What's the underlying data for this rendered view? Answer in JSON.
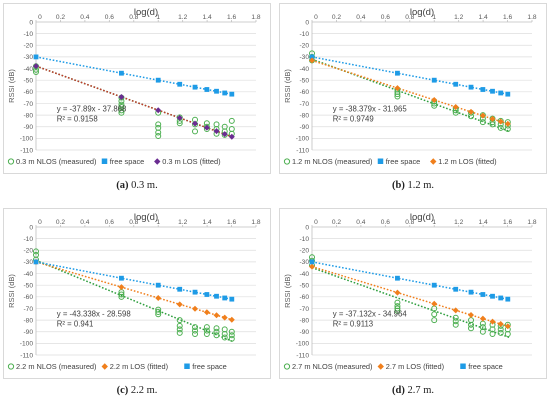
{
  "chart_data": [
    {
      "type": "scatter",
      "panel_label": "(a)",
      "caption": "0.3 m.",
      "title": "log(d)",
      "ylabel": "RSSI (dB)",
      "xlim": [
        0,
        1.8
      ],
      "ylim": [
        -110,
        0
      ],
      "x_ticks": [
        "0",
        "0.2",
        "0.4",
        "0.6",
        "0.8",
        "1",
        "1.2",
        "1.4",
        "1.6",
        "1.8"
      ],
      "y_ticks": [
        "0",
        "-10",
        "-20",
        "-30",
        "-40",
        "-50",
        "-60",
        "-70",
        "-80",
        "-90",
        "-100",
        "-110"
      ],
      "equation": "y = -37.89x - 37.868",
      "r_squared": "R² = 0.9158",
      "series": [
        {
          "name": "0.3 m NLOS (measured)",
          "marker": "circle-open",
          "color": "#4caf50",
          "trend": {
            "slope": -37.89,
            "intercept": -37.868,
            "color": "#2e9e3e"
          },
          "points": [
            [
              0,
              -38
            ],
            [
              0,
              -41
            ],
            [
              0,
              -43
            ],
            [
              0.699,
              -65
            ],
            [
              0.699,
              -68
            ],
            [
              0.699,
              -71
            ],
            [
              0.699,
              -73
            ],
            [
              0.699,
              -76
            ],
            [
              0.699,
              -78
            ],
            [
              1,
              -78
            ],
            [
              1,
              -88
            ],
            [
              1,
              -91
            ],
            [
              1,
              -95
            ],
            [
              1,
              -98
            ],
            [
              1.176,
              -82
            ],
            [
              1.176,
              -85
            ],
            [
              1.176,
              -87
            ],
            [
              1.301,
              -84
            ],
            [
              1.301,
              -88
            ],
            [
              1.301,
              -94
            ],
            [
              1.398,
              -87
            ],
            [
              1.398,
              -90
            ],
            [
              1.398,
              -92
            ],
            [
              1.477,
              -88
            ],
            [
              1.477,
              -92
            ],
            [
              1.477,
              -96
            ],
            [
              1.544,
              -90
            ],
            [
              1.544,
              -94
            ],
            [
              1.544,
              -97
            ],
            [
              1.602,
              -85
            ],
            [
              1.602,
              -92
            ],
            [
              1.602,
              -96
            ]
          ]
        },
        {
          "name": "free space",
          "marker": "square",
          "color": "#1e9be6",
          "trend": {
            "slope": -20,
            "intercept": -30,
            "color": "#1e9be6"
          },
          "points": [
            [
              0,
              -30
            ],
            [
              0.699,
              -44
            ],
            [
              1,
              -50
            ],
            [
              1.176,
              -53.5
            ],
            [
              1.301,
              -56
            ],
            [
              1.398,
              -58
            ],
            [
              1.477,
              -59.5
            ],
            [
              1.544,
              -61
            ],
            [
              1.602,
              -62
            ]
          ]
        },
        {
          "name": "0.3 m LOS (fitted)",
          "marker": "diamond",
          "color": "#6a2c91",
          "trend": {
            "slope": -37.89,
            "intercept": -37.868,
            "color": "#c0392b"
          },
          "points": [
            [
              0,
              -37.9
            ],
            [
              0.699,
              -64.4
            ],
            [
              1,
              -75.8
            ],
            [
              1.176,
              -82.4
            ],
            [
              1.301,
              -87.2
            ],
            [
              1.398,
              -90.8
            ],
            [
              1.477,
              -93.8
            ],
            [
              1.544,
              -96.4
            ],
            [
              1.602,
              -98.6
            ]
          ]
        }
      ]
    },
    {
      "type": "scatter",
      "panel_label": "(b)",
      "caption": "1.2 m.",
      "title": "log(d)",
      "ylabel": "RSSI (dB)",
      "xlim": [
        0,
        1.8
      ],
      "ylim": [
        -110,
        0
      ],
      "x_ticks": [
        "0",
        "0.2",
        "0.4",
        "0.6",
        "0.8",
        "1",
        "1.2",
        "1.4",
        "1.6",
        "1.8"
      ],
      "y_ticks": [
        "0",
        "-10",
        "-20",
        "-30",
        "-40",
        "-50",
        "-60",
        "-70",
        "-80",
        "-90",
        "-100",
        "-110"
      ],
      "equation": "y = -38.379x - 31.965",
      "r_squared": "R² = 0.9749",
      "series": [
        {
          "name": "1.2 m NLOS (measured)",
          "marker": "circle-open",
          "color": "#4caf50",
          "trend": {
            "slope": -38.379,
            "intercept": -31.965,
            "color": "#2e9e3e"
          },
          "points": [
            [
              0,
              -27
            ],
            [
              0,
              -30
            ],
            [
              0,
              -33
            ],
            [
              0.699,
              -58
            ],
            [
              0.699,
              -60
            ],
            [
              0.699,
              -62
            ],
            [
              0.699,
              -64
            ],
            [
              1,
              -68
            ],
            [
              1,
              -70
            ],
            [
              1,
              -72
            ],
            [
              1.176,
              -74
            ],
            [
              1.176,
              -76
            ],
            [
              1.176,
              -78
            ],
            [
              1.301,
              -78
            ],
            [
              1.301,
              -81
            ],
            [
              1.398,
              -80
            ],
            [
              1.398,
              -83
            ],
            [
              1.398,
              -86
            ],
            [
              1.477,
              -83
            ],
            [
              1.477,
              -86
            ],
            [
              1.477,
              -88
            ],
            [
              1.544,
              -85
            ],
            [
              1.544,
              -88
            ],
            [
              1.544,
              -91
            ],
            [
              1.602,
              -86
            ],
            [
              1.602,
              -89
            ],
            [
              1.602,
              -92
            ]
          ]
        },
        {
          "name": "free space",
          "marker": "square",
          "color": "#1e9be6",
          "trend": {
            "slope": -20,
            "intercept": -30,
            "color": "#1e9be6"
          },
          "points": [
            [
              0,
              -30
            ],
            [
              0.699,
              -44
            ],
            [
              1,
              -50
            ],
            [
              1.176,
              -53.5
            ],
            [
              1.301,
              -56
            ],
            [
              1.398,
              -58
            ],
            [
              1.477,
              -59.5
            ],
            [
              1.544,
              -61
            ],
            [
              1.602,
              -62
            ]
          ]
        },
        {
          "name": "1.2 m LOS (fitted)",
          "marker": "diamond",
          "color": "#f07f1c",
          "trend": {
            "slope": -34,
            "intercept": -33,
            "color": "#f07f1c"
          },
          "points": [
            [
              0,
              -33
            ],
            [
              0.699,
              -56.8
            ],
            [
              1,
              -67
            ],
            [
              1.176,
              -73
            ],
            [
              1.301,
              -77.2
            ],
            [
              1.398,
              -80.5
            ],
            [
              1.477,
              -83.2
            ],
            [
              1.544,
              -85.5
            ],
            [
              1.602,
              -87.5
            ]
          ]
        }
      ]
    },
    {
      "type": "scatter",
      "panel_label": "(c)",
      "caption": "2.2 m.",
      "title": "log(d)",
      "ylabel": "RSSI (dB)",
      "xlim": [
        0,
        1.8
      ],
      "ylim": [
        -110,
        0
      ],
      "x_ticks": [
        "0",
        "0.2",
        "0.4",
        "0.6",
        "0.8",
        "1",
        "1.2",
        "1.4",
        "1.6",
        "1.8"
      ],
      "y_ticks": [
        "0",
        "-10",
        "-20",
        "-30",
        "-40",
        "-50",
        "-60",
        "-70",
        "-80",
        "-90",
        "-100",
        "-110"
      ],
      "equation": "y = -43.338x - 28.598",
      "r_squared": "R² = 0.941",
      "series": [
        {
          "name": "2.2 m NLOS (measured)",
          "marker": "circle-open",
          "color": "#4caf50",
          "trend": {
            "slope": -43.338,
            "intercept": -28.598,
            "color": "#2e9e3e"
          },
          "points": [
            [
              0,
              -21
            ],
            [
              0,
              -24
            ],
            [
              0,
              -28
            ],
            [
              0.699,
              -56
            ],
            [
              0.699,
              -58
            ],
            [
              0.699,
              -60
            ],
            [
              1,
              -71
            ],
            [
              1,
              -73
            ],
            [
              1,
              -75
            ],
            [
              1.176,
              -80
            ],
            [
              1.176,
              -85
            ],
            [
              1.176,
              -88
            ],
            [
              1.176,
              -91
            ],
            [
              1.301,
              -86
            ],
            [
              1.301,
              -89
            ],
            [
              1.301,
              -92
            ],
            [
              1.398,
              -86
            ],
            [
              1.398,
              -89
            ],
            [
              1.398,
              -92
            ],
            [
              1.477,
              -87
            ],
            [
              1.477,
              -90
            ],
            [
              1.477,
              -93
            ],
            [
              1.544,
              -88
            ],
            [
              1.544,
              -92
            ],
            [
              1.544,
              -95
            ],
            [
              1.602,
              -90
            ],
            [
              1.602,
              -93
            ],
            [
              1.602,
              -96
            ]
          ]
        },
        {
          "name": "2.2 m LOS (fitted)",
          "marker": "diamond",
          "color": "#f07f1c",
          "trend": {
            "slope": -31,
            "intercept": -30,
            "color": "#f07f1c"
          },
          "points": [
            [
              0,
              -30
            ],
            [
              0.699,
              -51.7
            ],
            [
              1,
              -61
            ],
            [
              1.176,
              -66.5
            ],
            [
              1.301,
              -70.3
            ],
            [
              1.398,
              -73.3
            ],
            [
              1.477,
              -75.8
            ],
            [
              1.544,
              -77.9
            ],
            [
              1.602,
              -79.7
            ]
          ]
        },
        {
          "name": "free space",
          "marker": "square",
          "color": "#1e9be6",
          "trend": {
            "slope": -20,
            "intercept": -30,
            "color": "#1e9be6"
          },
          "points": [
            [
              0,
              -30
            ],
            [
              0.699,
              -44
            ],
            [
              1,
              -50
            ],
            [
              1.176,
              -53.5
            ],
            [
              1.301,
              -56
            ],
            [
              1.398,
              -58
            ],
            [
              1.477,
              -59.5
            ],
            [
              1.544,
              -61
            ],
            [
              1.602,
              -62
            ]
          ]
        }
      ]
    },
    {
      "type": "scatter",
      "panel_label": "(d)",
      "caption": "2.7 m.",
      "title": "log(d)",
      "ylabel": "RSSI (dB)",
      "xlim": [
        0,
        1.8
      ],
      "ylim": [
        -110,
        0
      ],
      "x_ticks": [
        "0",
        "0.2",
        "0.4",
        "0.6",
        "0.8",
        "1",
        "1.2",
        "1.4",
        "1.6",
        "1.8"
      ],
      "y_ticks": [
        "0",
        "-10",
        "-20",
        "-30",
        "-40",
        "-50",
        "-60",
        "-70",
        "-80",
        "-90",
        "-100",
        "-110"
      ],
      "equation": "y = -37.132x - 34.964",
      "r_squared": "R² = 0.9113",
      "series": [
        {
          "name": "2.7 m NLOS (measured)",
          "marker": "circle-open",
          "color": "#4caf50",
          "trend": {
            "slope": -37.132,
            "intercept": -34.964,
            "color": "#2e9e3e"
          },
          "points": [
            [
              0,
              -26
            ],
            [
              0,
              -29
            ],
            [
              0,
              -33
            ],
            [
              0.699,
              -65
            ],
            [
              0.699,
              -68
            ],
            [
              0.699,
              -70
            ],
            [
              0.699,
              -72
            ],
            [
              1,
              -70
            ],
            [
              1,
              -75
            ],
            [
              1,
              -80
            ],
            [
              1.176,
              -78
            ],
            [
              1.176,
              -81
            ],
            [
              1.176,
              -84
            ],
            [
              1.301,
              -80
            ],
            [
              1.301,
              -84
            ],
            [
              1.301,
              -87
            ],
            [
              1.398,
              -83
            ],
            [
              1.398,
              -86
            ],
            [
              1.398,
              -90
            ],
            [
              1.477,
              -84
            ],
            [
              1.477,
              -88
            ],
            [
              1.477,
              -92
            ],
            [
              1.544,
              -85
            ],
            [
              1.544,
              -88
            ],
            [
              1.544,
              -91
            ],
            [
              1.602,
              -84
            ],
            [
              1.602,
              -88
            ],
            [
              1.602,
              -92
            ]
          ]
        },
        {
          "name": "2.7 m LOS (fitted)",
          "marker": "diamond",
          "color": "#f07f1c",
          "trend": {
            "slope": -32,
            "intercept": -34,
            "color": "#f07f1c"
          },
          "points": [
            [
              0,
              -34
            ],
            [
              0.699,
              -56.4
            ],
            [
              1,
              -66
            ],
            [
              1.176,
              -71.6
            ],
            [
              1.301,
              -75.6
            ],
            [
              1.398,
              -78.7
            ],
            [
              1.477,
              -81.3
            ],
            [
              1.544,
              -83.4
            ],
            [
              1.602,
              -85.3
            ]
          ]
        },
        {
          "name": "free space",
          "marker": "square",
          "color": "#1e9be6",
          "trend": {
            "slope": -20,
            "intercept": -30,
            "color": "#1e9be6"
          },
          "points": [
            [
              0,
              -30
            ],
            [
              0.699,
              -44
            ],
            [
              1,
              -50
            ],
            [
              1.176,
              -53.5
            ],
            [
              1.301,
              -56
            ],
            [
              1.398,
              -58
            ],
            [
              1.477,
              -59.5
            ],
            [
              1.544,
              -61
            ],
            [
              1.602,
              -62
            ]
          ]
        }
      ]
    }
  ]
}
